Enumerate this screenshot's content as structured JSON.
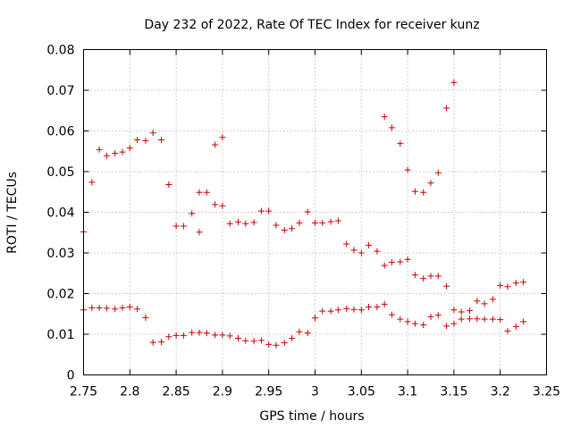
{
  "chart_data": {
    "type": "scatter",
    "title": "Day 232 of 2022, Rate Of TEC Index for receiver kunz",
    "xlabel": "GPS time / hours",
    "ylabel": "ROTI / TECUs",
    "xlim": [
      2.75,
      3.25
    ],
    "ylim": [
      0,
      0.08
    ],
    "x_ticks": [
      2.75,
      2.8,
      2.85,
      2.9,
      2.95,
      3.0,
      3.05,
      3.1,
      3.15,
      3.2,
      3.25
    ],
    "x_tick_labels": [
      "2.75",
      "2.8",
      "2.85",
      "2.9",
      "2.95",
      "3",
      "3.05",
      "3.1",
      "3.15",
      "3.2",
      "3.25"
    ],
    "y_ticks": [
      0,
      0.01,
      0.02,
      0.03,
      0.04,
      0.05,
      0.06,
      0.07,
      0.08
    ],
    "y_tick_labels": [
      "0",
      "0.01",
      "0.02",
      "0.03",
      "0.04",
      "0.05",
      "0.06",
      "0.07",
      "0.08"
    ],
    "grid": true,
    "marker": "+",
    "color": "#cc0000",
    "series": [
      {
        "points": [
          [
            2.75,
            0.0352
          ],
          [
            2.759,
            0.0474
          ],
          [
            2.767,
            0.0554
          ],
          [
            2.775,
            0.0539
          ],
          [
            2.784,
            0.0545
          ],
          [
            2.792,
            0.0548
          ],
          [
            2.8,
            0.0558
          ],
          [
            2.808,
            0.0578
          ],
          [
            2.817,
            0.0576
          ],
          [
            2.825,
            0.0595
          ],
          [
            2.834,
            0.0578
          ],
          [
            2.842,
            0.0468
          ],
          [
            2.85,
            0.0366
          ],
          [
            2.858,
            0.0366
          ],
          [
            2.867,
            0.0397
          ],
          [
            2.875,
            0.0351
          ],
          [
            2.875,
            0.0449
          ],
          [
            2.883,
            0.0449
          ],
          [
            2.892,
            0.0566
          ],
          [
            2.892,
            0.0419
          ],
          [
            2.9,
            0.0584
          ],
          [
            2.9,
            0.0416
          ],
          [
            2.908,
            0.0372
          ],
          [
            2.917,
            0.0376
          ],
          [
            2.925,
            0.0372
          ],
          [
            2.934,
            0.0375
          ],
          [
            2.942,
            0.0403
          ],
          [
            2.95,
            0.0403
          ],
          [
            2.958,
            0.0368
          ],
          [
            2.967,
            0.0356
          ],
          [
            2.975,
            0.036
          ],
          [
            2.983,
            0.0374
          ],
          [
            2.992,
            0.0401
          ],
          [
            3.0,
            0.0374
          ],
          [
            3.008,
            0.0374
          ],
          [
            3.017,
            0.0377
          ],
          [
            3.025,
            0.0379
          ],
          [
            3.034,
            0.0322
          ],
          [
            3.042,
            0.0307
          ],
          [
            3.05,
            0.03
          ],
          [
            3.058,
            0.0319
          ],
          [
            3.067,
            0.0304
          ],
          [
            3.075,
            0.0269
          ],
          [
            3.075,
            0.0635
          ],
          [
            3.083,
            0.0277
          ],
          [
            3.083,
            0.0608
          ],
          [
            3.092,
            0.0278
          ],
          [
            3.092,
            0.0569
          ],
          [
            3.1,
            0.0284
          ],
          [
            3.1,
            0.0504
          ],
          [
            3.108,
            0.0246
          ],
          [
            3.108,
            0.0451
          ],
          [
            3.117,
            0.0237
          ],
          [
            3.117,
            0.0449
          ],
          [
            3.125,
            0.0243
          ],
          [
            3.125,
            0.0472
          ],
          [
            3.133,
            0.0243
          ],
          [
            3.133,
            0.0497
          ],
          [
            3.142,
            0.0218
          ],
          [
            3.142,
            0.0656
          ],
          [
            3.15,
            0.0719
          ],
          [
            3.15,
            0.016
          ],
          [
            3.158,
            0.0155
          ],
          [
            3.167,
            0.0158
          ],
          [
            3.175,
            0.0182
          ],
          [
            3.183,
            0.0175
          ],
          [
            3.192,
            0.0186
          ],
          [
            3.2,
            0.022
          ],
          [
            3.208,
            0.0217
          ],
          [
            3.217,
            0.0226
          ],
          [
            3.225,
            0.0228
          ]
        ]
      },
      {
        "points": [
          [
            2.75,
            0.016
          ],
          [
            2.759,
            0.0165
          ],
          [
            2.767,
            0.0165
          ],
          [
            2.775,
            0.0164
          ],
          [
            2.784,
            0.0162
          ],
          [
            2.792,
            0.0165
          ],
          [
            2.8,
            0.0167
          ],
          [
            2.808,
            0.0162
          ],
          [
            2.817,
            0.0141
          ],
          [
            2.825,
            0.008
          ],
          [
            2.834,
            0.0081
          ],
          [
            2.842,
            0.0094
          ],
          [
            2.85,
            0.0097
          ],
          [
            2.858,
            0.0097
          ],
          [
            2.867,
            0.0104
          ],
          [
            2.875,
            0.0104
          ],
          [
            2.883,
            0.0103
          ],
          [
            2.892,
            0.0098
          ],
          [
            2.9,
            0.0098
          ],
          [
            2.908,
            0.0096
          ],
          [
            2.917,
            0.009
          ],
          [
            2.925,
            0.0084
          ],
          [
            2.934,
            0.0083
          ],
          [
            2.942,
            0.0085
          ],
          [
            2.95,
            0.0075
          ],
          [
            2.958,
            0.0073
          ],
          [
            2.967,
            0.0079
          ],
          [
            2.975,
            0.009
          ],
          [
            2.983,
            0.0106
          ],
          [
            2.992,
            0.0103
          ],
          [
            3.0,
            0.014
          ],
          [
            3.008,
            0.0157
          ],
          [
            3.017,
            0.0157
          ],
          [
            3.025,
            0.016
          ],
          [
            3.034,
            0.0163
          ],
          [
            3.042,
            0.0161
          ],
          [
            3.05,
            0.016
          ],
          [
            3.058,
            0.0167
          ],
          [
            3.067,
            0.0167
          ],
          [
            3.075,
            0.0174
          ],
          [
            3.083,
            0.0148
          ],
          [
            3.092,
            0.0137
          ],
          [
            3.1,
            0.0131
          ],
          [
            3.108,
            0.0126
          ],
          [
            3.117,
            0.0123
          ],
          [
            3.125,
            0.0143
          ],
          [
            3.133,
            0.0147
          ],
          [
            3.142,
            0.012
          ],
          [
            3.15,
            0.0126
          ],
          [
            3.158,
            0.0137
          ],
          [
            3.167,
            0.0138
          ],
          [
            3.175,
            0.0138
          ],
          [
            3.183,
            0.0137
          ],
          [
            3.192,
            0.0137
          ],
          [
            3.2,
            0.0136
          ],
          [
            3.208,
            0.0108
          ],
          [
            3.217,
            0.0119
          ],
          [
            3.225,
            0.0131
          ]
        ]
      }
    ]
  }
}
